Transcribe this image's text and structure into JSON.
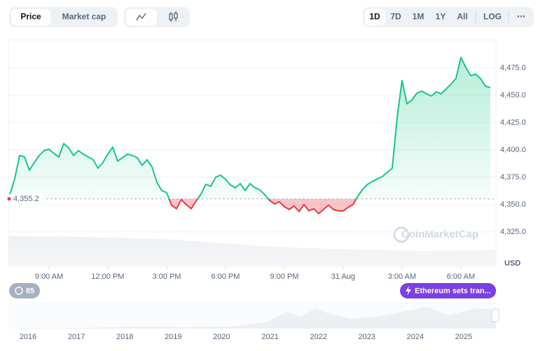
{
  "controls": {
    "views": [
      "Price",
      "Market cap"
    ],
    "ranges": [
      "1D",
      "7D",
      "1M",
      "1Y",
      "All",
      "LOG",
      "⋯"
    ]
  },
  "chart_data": {
    "type": "line",
    "x": [
      7,
      7.25,
      7.5,
      7.75,
      8,
      8.25,
      8.5,
      8.75,
      9,
      9.25,
      9.5,
      9.75,
      10,
      10.25,
      10.5,
      10.75,
      11,
      11.25,
      11.5,
      11.75,
      12,
      12.25,
      12.5,
      12.75,
      13,
      13.25,
      13.5,
      13.75,
      14,
      14.25,
      14.5,
      14.75,
      15,
      15.25,
      15.5,
      15.75,
      16,
      16.25,
      16.5,
      16.75,
      17,
      17.25,
      17.5,
      17.75,
      18,
      18.25,
      18.5,
      18.75,
      19,
      19.25,
      19.5,
      19.75,
      20,
      20.25,
      20.5,
      20.75,
      21,
      21.25,
      21.5,
      21.75,
      22,
      22.25,
      22.5,
      22.75,
      23,
      23.25,
      23.5,
      23.75,
      24,
      24.25,
      24.5,
      24.75,
      25,
      25.25,
      25.5,
      25.75,
      26,
      26.25,
      26.5,
      26.75,
      27,
      27.25,
      27.5,
      27.75,
      28,
      28.25,
      28.5,
      28.75,
      29,
      29.25,
      29.5,
      29.75,
      30,
      30.25,
      30.5,
      30.75,
      31,
      31.25,
      31.5
    ],
    "series": [
      {
        "name": "Price",
        "color": "#16c784",
        "below_color": "#ea3943",
        "values": [
          4359.0,
          4373.7,
          4394.9,
          4393.6,
          4381.4,
          4388.5,
          4394.9,
          4399.4,
          4400.6,
          4396.8,
          4393.6,
          4405.8,
          4401.9,
          4394.9,
          4399.4,
          4396.2,
          4393.6,
          4391.0,
          4383.3,
          4388.5,
          4396.2,
          4402.6,
          4389.7,
          4392.9,
          4396.2,
          4394.9,
          4392.9,
          4385.9,
          4391.0,
          4384.6,
          4370.5,
          4362.8,
          4360.9,
          4349.4,
          4346.2,
          4354.5,
          4350.0,
          4346.2,
          4353.2,
          4359.6,
          4368.6,
          4366.7,
          4375.0,
          4376.9,
          4373.1,
          4368.0,
          4365.4,
          4369.2,
          4362.8,
          4369.2,
          4365.4,
          4363.5,
          4359.0,
          4353.8,
          4350.6,
          4352.6,
          4348.1,
          4345.5,
          4348.7,
          4343.6,
          4350.0,
          4344.2,
          4346.2,
          4341.7,
          4345.5,
          4349.4,
          4345.5,
          4344.2,
          4344.2,
          4347.4,
          4350.0,
          4357.7,
          4364.1,
          4368.6,
          4371.2,
          4373.7,
          4375.6,
          4379.5,
          4383.3,
          4429.5,
          4463.5,
          4442.3,
          4445.5,
          4451.9,
          4453.8,
          4451.3,
          4449.4,
          4453.2,
          4451.3,
          4455.8,
          4460.3,
          4465.4,
          4484.6,
          4475.6,
          4467.9,
          4469.2,
          4465.4,
          4458.3,
          4457.1
        ]
      }
    ],
    "baseline": {
      "value": 4355.2,
      "label": "4,355.2"
    },
    "xlim": [
      6.93,
      31.79
    ],
    "xticks": [
      {
        "value": 9,
        "label": "9:00 AM"
      },
      {
        "value": 12,
        "label": "12:00 PM"
      },
      {
        "value": 15,
        "label": "3:00 PM"
      },
      {
        "value": 18,
        "label": "6:00 PM"
      },
      {
        "value": 21,
        "label": "9:00 PM"
      },
      {
        "value": 24,
        "label": "31 Aug"
      },
      {
        "value": 27,
        "label": "3:00 AM"
      },
      {
        "value": 30,
        "label": "6:00 AM"
      }
    ],
    "ylim": [
      4293.6,
      4500.6
    ],
    "yticks": [
      {
        "value": 4325,
        "label": "4,325.0"
      },
      {
        "value": 4350,
        "label": "4,350.0"
      },
      {
        "value": 4375,
        "label": "4,375.0"
      },
      {
        "value": 4400,
        "label": "4,400.0"
      },
      {
        "value": 4425,
        "label": "4,425.0"
      },
      {
        "value": 4450,
        "label": "4,450.0"
      },
      {
        "value": 4475,
        "label": "4,475.0"
      }
    ],
    "y_axis_label": "USD",
    "grid": true,
    "watermark": "CoinMarketCap"
  },
  "annotations": {
    "count": "85",
    "event": "Ethereum sets tran..."
  },
  "navigator": {
    "years": [
      "2016",
      "2017",
      "2018",
      "2019",
      "2020",
      "2021",
      "2022",
      "2023",
      "2024",
      "2025"
    ]
  }
}
